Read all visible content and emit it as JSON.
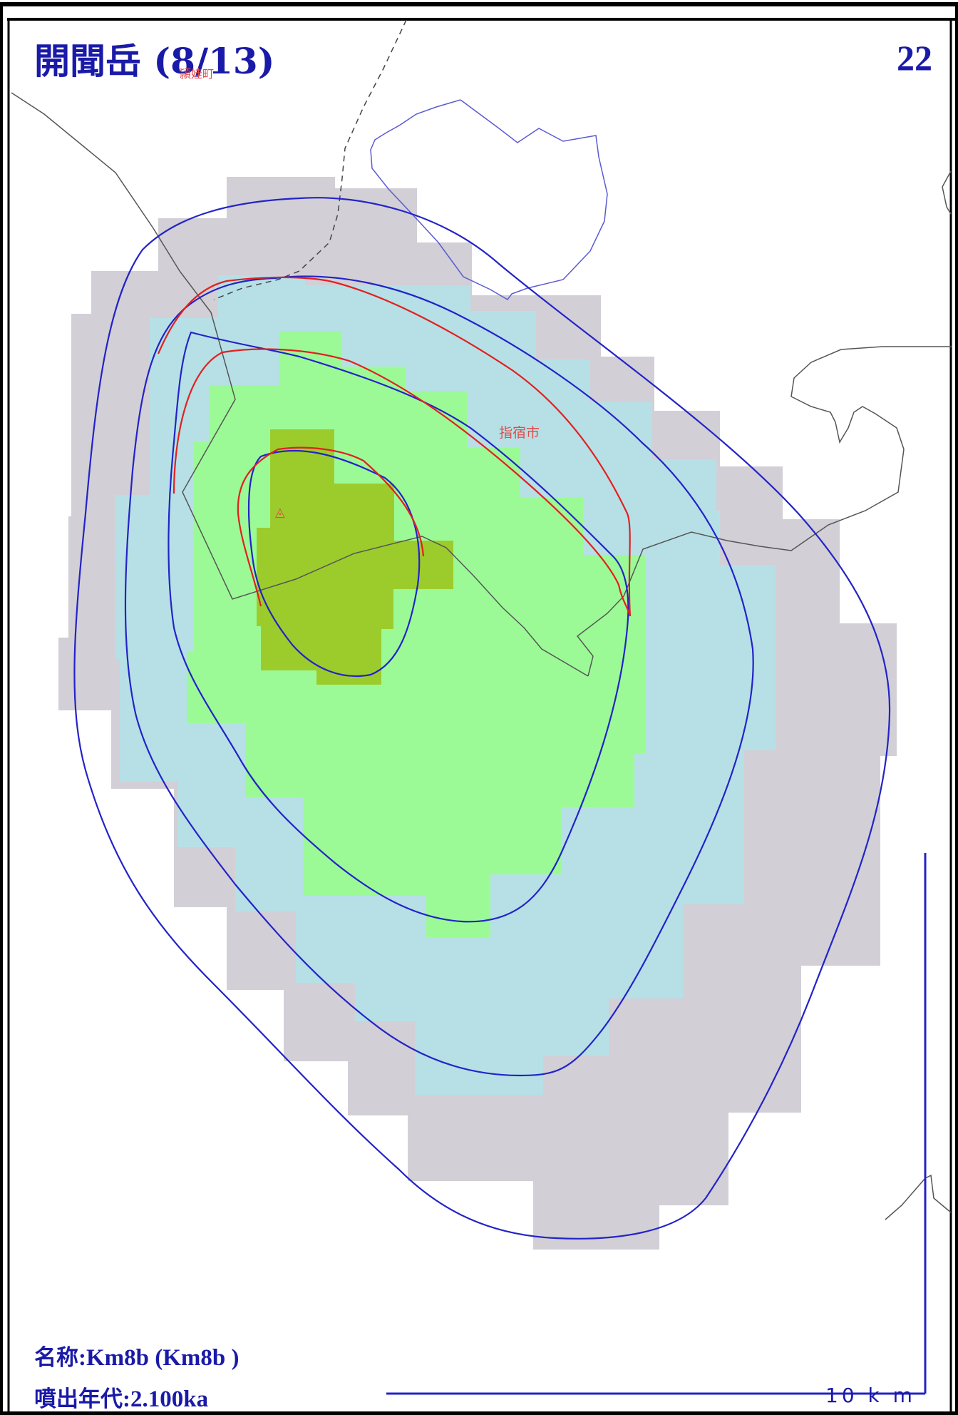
{
  "title": "開聞岳",
  "title_page": "(8/13)",
  "page_number": "22",
  "labels": {
    "town": "頴娃町",
    "city": "指宿市"
  },
  "volcano_symbol": "◬",
  "scale": {
    "label": "10 k m"
  },
  "info": {
    "name_label": "名称",
    "name_value": ":Km8b (Km8b )",
    "age_label": "噴出年代",
    "age_value": ":2.100ka"
  },
  "colors": {
    "frame": "#000000",
    "outer_zone": "#d2cfd6",
    "zone_2": "#b6e0e6",
    "zone_3": "#9cfa96",
    "zone_4": "#9ccc2c",
    "blue_contour": "#2323c8",
    "red_contour": "#e22020",
    "boundary": "#555555",
    "coast": "#5a5ad2",
    "text": "#1a1aa8"
  }
}
